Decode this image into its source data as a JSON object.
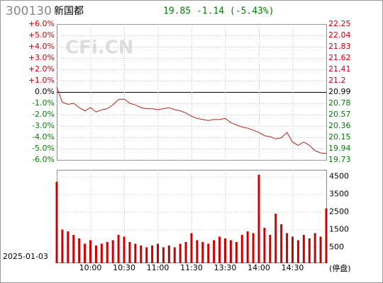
{
  "chart_data": {
    "type": "line",
    "code": "300130",
    "name": "新国都",
    "quote": "19.85 -1.14 (-5.43%)",
    "watermark": "CFi.CN",
    "date": "2025-01-03",
    "volume_label": "(停盘)",
    "up_color": "#cc0000",
    "down_color": "#008000",
    "line_color": "#b22222",
    "volume_color": "#cc0000",
    "categories": [
      null,
      null,
      null,
      null,
      null,
      null,
      "10:00",
      null,
      null,
      null,
      null,
      null,
      "10:30",
      null,
      null,
      null,
      null,
      null,
      "11:00",
      null,
      null,
      null,
      null,
      null,
      "11:30",
      null,
      null,
      null,
      null,
      null,
      "13:30",
      null,
      null,
      null,
      null,
      null,
      "14:00",
      null,
      null,
      null,
      null,
      null,
      "14:30",
      null,
      null,
      null,
      null,
      null,
      null
    ],
    "ylim": [
      -6,
      6
    ],
    "yticks": [
      {
        "value": 6,
        "label": "+6.0%"
      },
      {
        "value": 5,
        "label": "+5.0%"
      },
      {
        "value": 4,
        "label": "+4.0%"
      },
      {
        "value": 3,
        "label": "+3.0%"
      },
      {
        "value": 2,
        "label": "+2.0%"
      },
      {
        "value": 1,
        "label": "+1.0%"
      },
      {
        "value": 0,
        "label": "0.0%"
      },
      {
        "value": -1,
        "label": "-1.0%"
      },
      {
        "value": -2,
        "label": "-2.0%"
      },
      {
        "value": -3,
        "label": "-3.0%"
      },
      {
        "value": -4,
        "label": "-4.0%"
      },
      {
        "value": -5,
        "label": "-5.0%"
      },
      {
        "value": -6,
        "label": "-6.0%"
      }
    ],
    "prev_close": 20.99,
    "y2lim": [
      19.73,
      22.25
    ],
    "y2ticks": [
      22.25,
      22.04,
      21.83,
      21.62,
      21.41,
      21.2,
      20.99,
      20.78,
      20.57,
      20.36,
      20.15,
      19.94,
      19.73
    ],
    "series": [
      {
        "name": "price",
        "axis": "y2",
        "values": [
          21.08,
          20.8,
          20.76,
          20.78,
          20.7,
          20.64,
          20.7,
          20.62,
          20.66,
          20.68,
          20.75,
          20.85,
          20.86,
          20.78,
          20.75,
          20.7,
          20.68,
          20.68,
          20.66,
          20.68,
          20.7,
          20.66,
          20.64,
          20.6,
          20.54,
          20.5,
          20.48,
          20.46,
          20.48,
          20.48,
          20.5,
          20.42,
          20.38,
          20.34,
          20.32,
          20.28,
          20.24,
          20.18,
          20.16,
          20.12,
          20.14,
          20.24,
          20.06,
          20.0,
          20.06,
          20.0,
          19.9,
          19.86,
          19.85
        ]
      }
    ],
    "volume": {
      "ylim": [
        0,
        4880
      ],
      "yticks": [
        4500,
        3500,
        2500,
        1500,
        500
      ],
      "values": [
        4200,
        1500,
        1400,
        1200,
        1000,
        700,
        900,
        600,
        700,
        800,
        900,
        1200,
        1100,
        800,
        700,
        600,
        500,
        600,
        700,
        500,
        600,
        500,
        700,
        800,
        1300,
        900,
        800,
        700,
        900,
        1100,
        1000,
        900,
        800,
        1200,
        1400,
        1300,
        4600,
        1600,
        1200,
        2400,
        1800,
        1300,
        1100,
        900,
        1200,
        1000,
        1300,
        1100,
        2700
      ]
    }
  }
}
